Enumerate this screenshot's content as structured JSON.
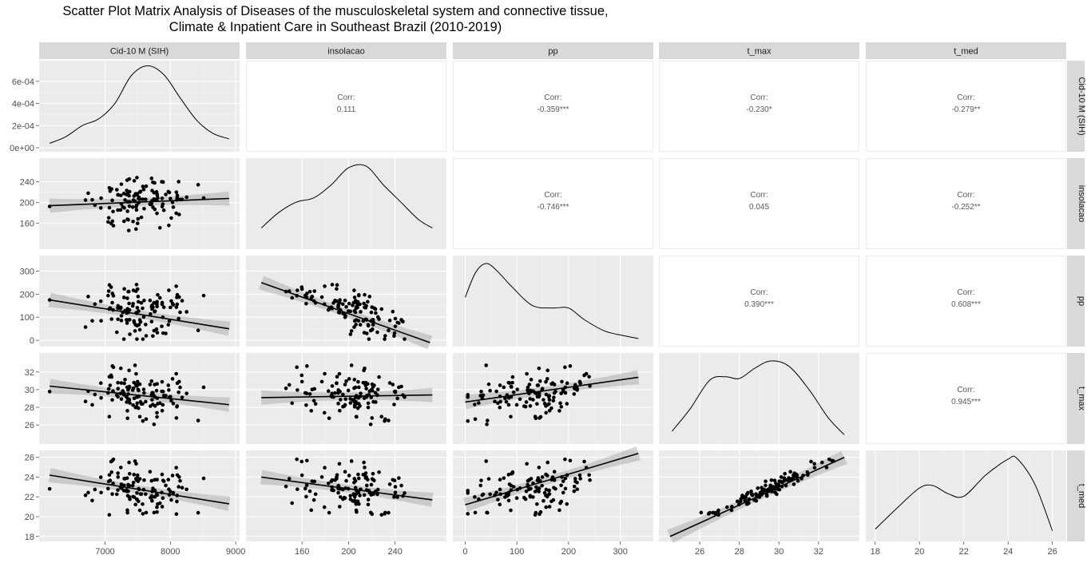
{
  "title_line1": "Scatter Plot Matrix Analysis of Diseases of the musculoskeletal system and connective tissue,",
  "title_line2": "Climate & Inpatient Care in Southeast Brazil (2010-2019)",
  "chart_data": {
    "type": "scatter",
    "variables": [
      "Cid-10 M (SIH)",
      "insolacao",
      "pp",
      "t_max",
      "t_med"
    ],
    "axis_ranges": {
      "Cid-10 M (SIH)": [
        6100,
        8950
      ],
      "insolacao": [
        118,
        278
      ],
      "pp": [
        -10,
        350
      ],
      "t_max": [
        24.3,
        33.7
      ],
      "t_med": [
        17.9,
        26.3
      ]
    },
    "x_ticks": {
      "Cid-10 M (SIH)": [
        7000,
        8000,
        9000
      ],
      "insolacao": [
        160,
        200,
        240
      ],
      "pp": [
        0,
        100,
        200,
        300
      ],
      "t_max": [
        26,
        28,
        30,
        32
      ],
      "t_med": [
        18,
        20,
        22,
        24,
        26
      ]
    },
    "y_ticks": {
      "density": [
        "0e+00",
        "2e-04",
        "4e-04",
        "6e-04"
      ],
      "insolacao": [
        160,
        200,
        240
      ],
      "pp": [
        0,
        100,
        200,
        300
      ],
      "t_max": [
        26,
        28,
        30,
        32
      ],
      "t_med": [
        18,
        20,
        22,
        24,
        26
      ]
    },
    "density_y_values": [
      0,
      0.0002,
      0.0004,
      0.0006
    ],
    "density_y_range": [
      0,
      0.00075
    ],
    "correlations": [
      {
        "row": "Cid-10 M (SIH)",
        "col": "insolacao",
        "label": "Corr:",
        "value": "0.111"
      },
      {
        "row": "Cid-10 M (SIH)",
        "col": "pp",
        "label": "Corr:",
        "value": "-0.359***"
      },
      {
        "row": "Cid-10 M (SIH)",
        "col": "t_max",
        "label": "Corr:",
        "value": "-0.230*"
      },
      {
        "row": "Cid-10 M (SIH)",
        "col": "t_med",
        "label": "Corr:",
        "value": "-0.279**"
      },
      {
        "row": "insolacao",
        "col": "pp",
        "label": "Corr:",
        "value": "-0.746***"
      },
      {
        "row": "insolacao",
        "col": "t_max",
        "label": "Corr:",
        "value": "0.045"
      },
      {
        "row": "insolacao",
        "col": "t_med",
        "label": "Corr:",
        "value": "-0.252**"
      },
      {
        "row": "pp",
        "col": "t_max",
        "label": "Corr:",
        "value": "0.390***"
      },
      {
        "row": "pp",
        "col": "t_med",
        "label": "Corr:",
        "value": "0.608***"
      },
      {
        "row": "t_max",
        "col": "t_med",
        "label": "Corr:",
        "value": "0.945***"
      }
    ],
    "fit_lines": [
      {
        "x": "Cid-10 M (SIH)",
        "y": "insolacao",
        "x0": 6150,
        "y0": 194,
        "x1": 8900,
        "y1": 208
      },
      {
        "x": "Cid-10 M (SIH)",
        "y": "pp",
        "x0": 6150,
        "y0": 175,
        "x1": 8900,
        "y1": 50
      },
      {
        "x": "insolacao",
        "y": "pp",
        "x0": 125,
        "y0": 250,
        "x1": 270,
        "y1": -10
      },
      {
        "x": "Cid-10 M (SIH)",
        "y": "t_max",
        "x0": 6150,
        "y0": 30.4,
        "x1": 8900,
        "y1": 28.3
      },
      {
        "x": "insolacao",
        "y": "t_max",
        "x0": 125,
        "y0": 29.1,
        "x1": 272,
        "y1": 29.4
      },
      {
        "x": "pp",
        "y": "t_max",
        "x0": 0,
        "y0": 28.6,
        "x1": 335,
        "y1": 31.4
      },
      {
        "x": "Cid-10 M (SIH)",
        "y": "t_med",
        "x0": 6150,
        "y0": 24.2,
        "x1": 8900,
        "y1": 21.3
      },
      {
        "x": "insolacao",
        "y": "t_med",
        "x0": 125,
        "y0": 24.0,
        "x1": 272,
        "y1": 21.7
      },
      {
        "x": "pp",
        "y": "t_med",
        "x0": 0,
        "y0": 21.2,
        "x1": 335,
        "y1": 26.4
      },
      {
        "x": "t_max",
        "y": "t_med",
        "x0": 24.5,
        "y0": 18.0,
        "x1": 33.3,
        "y1": 26.0
      }
    ],
    "densities": {
      "Cid-10 M (SIH)": {
        "x": [
          6150,
          6400,
          6650,
          6900,
          7150,
          7400,
          7650,
          7900,
          8150,
          8400,
          8650,
          8900
        ],
        "y": [
          4e-05,
          0.0001,
          0.0002,
          0.00026,
          0.0004,
          0.00065,
          0.00074,
          0.00066,
          0.00045,
          0.00025,
          0.00013,
          8e-05
        ]
      },
      "insolacao": {
        "x": [
          125,
          140,
          155,
          170,
          185,
          200,
          215,
          230,
          245,
          260,
          272
        ],
        "y": [
          0.2,
          0.38,
          0.5,
          0.55,
          0.7,
          0.9,
          0.92,
          0.7,
          0.5,
          0.3,
          0.2
        ]
      },
      "pp": {
        "x": [
          0,
          20,
          40,
          60,
          90,
          130,
          170,
          200,
          230,
          270,
          310,
          335
        ],
        "y": [
          0.55,
          0.85,
          0.96,
          0.88,
          0.68,
          0.45,
          0.42,
          0.42,
          0.28,
          0.14,
          0.08,
          0.05
        ]
      },
      "t_max": {
        "x": [
          24.6,
          25.5,
          26.5,
          27.3,
          28.0,
          28.8,
          29.6,
          30.5,
          31.5,
          32.5,
          33.3
        ],
        "y": [
          0.1,
          0.35,
          0.68,
          0.72,
          0.7,
          0.82,
          0.9,
          0.84,
          0.58,
          0.25,
          0.06
        ]
      },
      "t_med": {
        "x": [
          18.0,
          19.0,
          20.0,
          20.6,
          21.3,
          22.0,
          23.0,
          24.0,
          24.4,
          25.2,
          26.0
        ],
        "y": [
          0.1,
          0.36,
          0.6,
          0.63,
          0.53,
          0.5,
          0.76,
          0.95,
          0.96,
          0.65,
          0.08
        ]
      }
    },
    "scatter_sample_size": 120,
    "grid": true
  }
}
